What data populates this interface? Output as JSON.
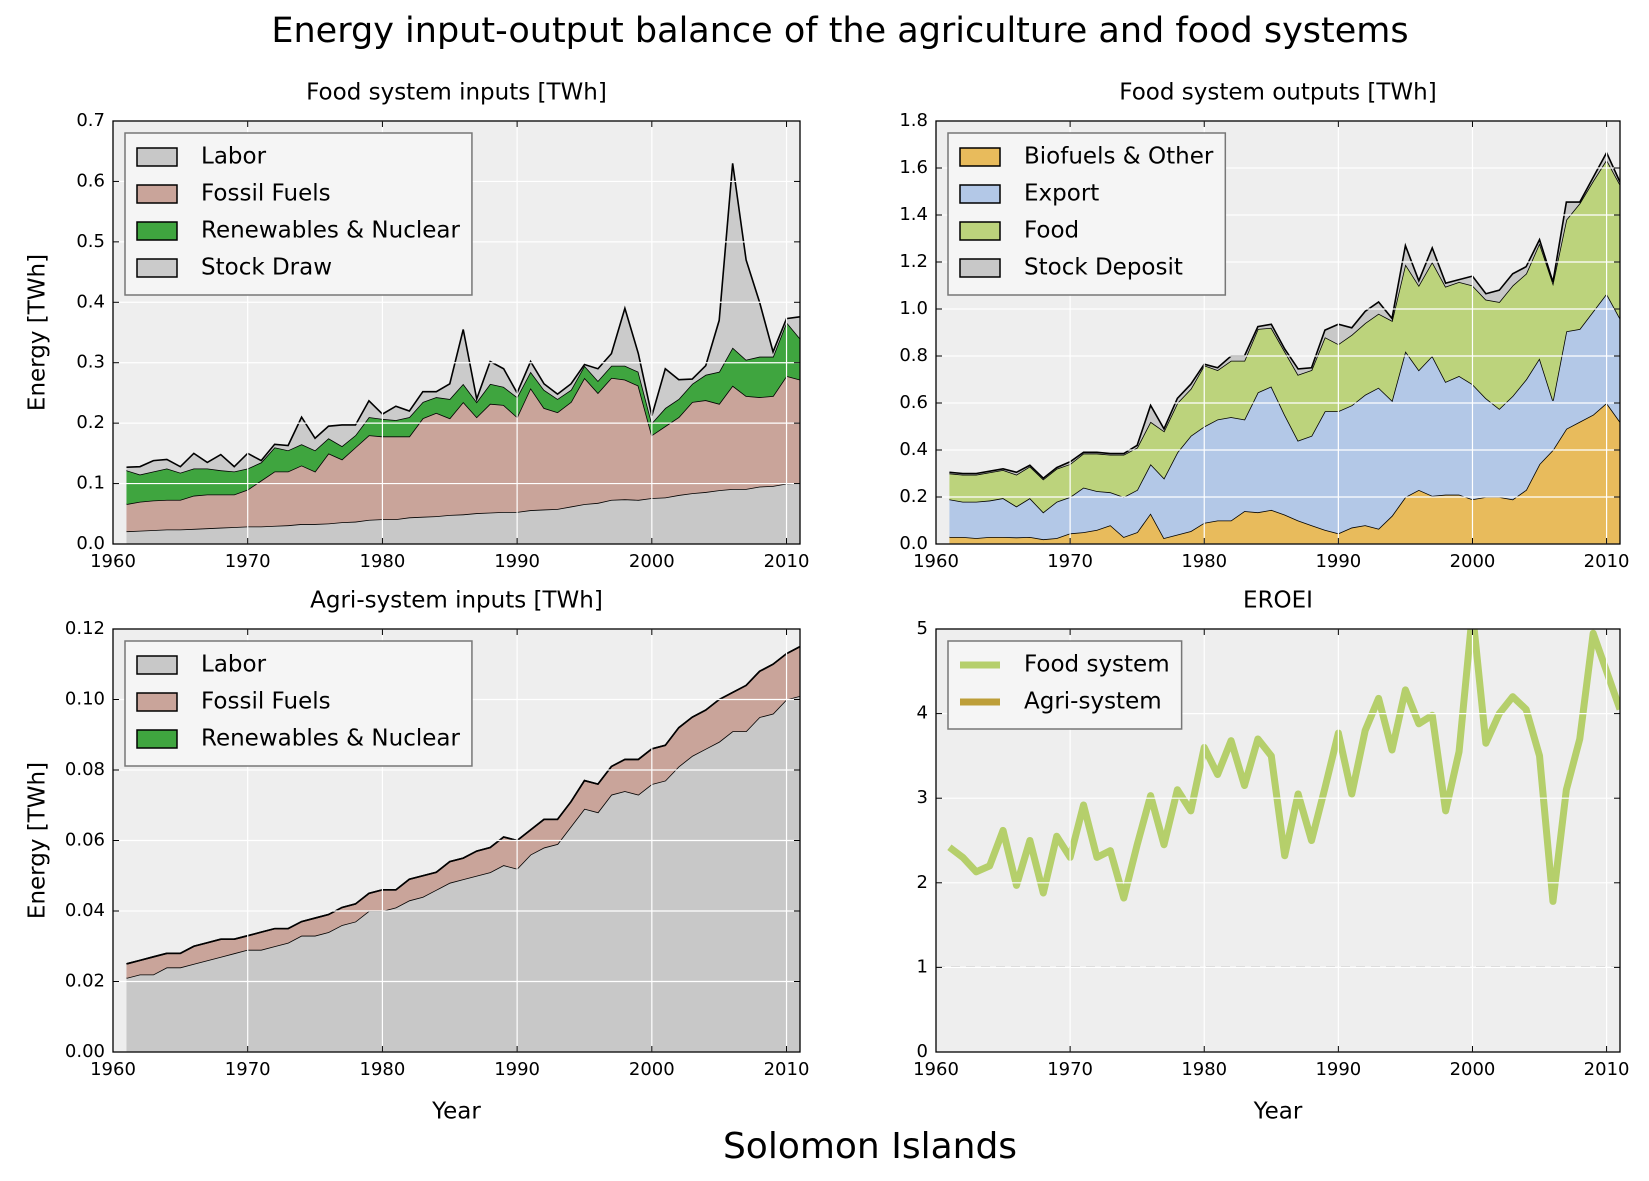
{
  "title": "Energy input-output balance of the agriculture and food systems",
  "subtitle": "Solomon Islands",
  "chart_data": [
    {
      "type": "area",
      "title": "Food system inputs [TWh]",
      "ylabel": "Energy [TWh]",
      "x": [
        1961,
        1962,
        1963,
        1964,
        1965,
        1966,
        1967,
        1968,
        1969,
        1970,
        1971,
        1972,
        1973,
        1974,
        1975,
        1976,
        1977,
        1978,
        1979,
        1980,
        1981,
        1982,
        1983,
        1984,
        1985,
        1986,
        1987,
        1988,
        1989,
        1990,
        1991,
        1992,
        1993,
        1994,
        1995,
        1996,
        1997,
        1998,
        1999,
        2000,
        2001,
        2002,
        2003,
        2004,
        2005,
        2006,
        2007,
        2008,
        2009,
        2010,
        2011
      ],
      "xlim": [
        1960,
        2011
      ],
      "xticks": [
        1960,
        1970,
        1980,
        1990,
        2000,
        2010
      ],
      "ylim": [
        0,
        0.7
      ],
      "yticks": [
        {
          "value": 0,
          "label": "0.0"
        },
        0.1,
        0.2,
        0.3,
        0.4,
        0.5,
        0.6,
        0.7
      ],
      "grid": true,
      "legend": "upper left",
      "series": [
        {
          "name": "Labor",
          "color": "#c8c8c8",
          "values": [
            0.021,
            0.022,
            0.023,
            0.024,
            0.024,
            0.025,
            0.026,
            0.027,
            0.028,
            0.029,
            0.029,
            0.03,
            0.031,
            0.033,
            0.033,
            0.034,
            0.036,
            0.037,
            0.04,
            0.041,
            0.041,
            0.044,
            0.045,
            0.046,
            0.048,
            0.049,
            0.051,
            0.052,
            0.053,
            0.053,
            0.056,
            0.057,
            0.058,
            0.062,
            0.066,
            0.068,
            0.073,
            0.074,
            0.073,
            0.076,
            0.077,
            0.081,
            0.084,
            0.086,
            0.089,
            0.091,
            0.091,
            0.095,
            0.096,
            0.1,
            0.101
          ]
        },
        {
          "name": "Fossil Fuels",
          "color": "#c9a49a",
          "values": [
            0.045,
            0.048,
            0.049,
            0.049,
            0.049,
            0.055,
            0.056,
            0.055,
            0.054,
            0.061,
            0.076,
            0.09,
            0.089,
            0.097,
            0.087,
            0.116,
            0.104,
            0.123,
            0.14,
            0.137,
            0.137,
            0.134,
            0.163,
            0.171,
            0.16,
            0.186,
            0.159,
            0.18,
            0.177,
            0.157,
            0.202,
            0.168,
            0.16,
            0.173,
            0.209,
            0.182,
            0.202,
            0.198,
            0.189,
            0.104,
            0.118,
            0.129,
            0.151,
            0.152,
            0.143,
            0.171,
            0.154,
            0.148,
            0.149,
            0.178,
            0.171
          ]
        },
        {
          "name": "Renewables & Nuclear",
          "color": "#3fa53f",
          "values": [
            0.056,
            0.045,
            0.048,
            0.052,
            0.045,
            0.045,
            0.043,
            0.04,
            0.038,
            0.035,
            0.03,
            0.04,
            0.035,
            0.035,
            0.035,
            0.025,
            0.022,
            0.02,
            0.03,
            0.029,
            0.027,
            0.032,
            0.027,
            0.026,
            0.032,
            0.03,
            0.025,
            0.033,
            0.03,
            0.033,
            0.027,
            0.03,
            0.022,
            0.02,
            0.02,
            0.02,
            0.02,
            0.023,
            0.023,
            0.02,
            0.03,
            0.03,
            0.03,
            0.042,
            0.053,
            0.063,
            0.06,
            0.067,
            0.065,
            0.089,
            0.068
          ]
        },
        {
          "name": "Stock Draw",
          "color": "#cbcbcb",
          "values": [
            0.005,
            0.013,
            0.018,
            0.015,
            0.01,
            0.025,
            0.01,
            0.026,
            0.008,
            0.025,
            0.003,
            0.005,
            0.008,
            0.045,
            0.02,
            0.02,
            0.035,
            0.017,
            0.027,
            0.008,
            0.023,
            0.01,
            0.017,
            0.009,
            0.025,
            0.09,
            0.005,
            0.037,
            0.03,
            0.007,
            0.017,
            0.01,
            0.008,
            0.01,
            0.002,
            0.02,
            0.02,
            0.095,
            0.03,
            0.012,
            0.065,
            0.032,
            0.008,
            0.015,
            0.085,
            0.305,
            0.165,
            0.09,
            0.008,
            0.006,
            0.036
          ]
        }
      ]
    },
    {
      "type": "area",
      "title": "Food system outputs [TWh]",
      "x": [
        1961,
        1962,
        1963,
        1964,
        1965,
        1966,
        1967,
        1968,
        1969,
        1970,
        1971,
        1972,
        1973,
        1974,
        1975,
        1976,
        1977,
        1978,
        1979,
        1980,
        1981,
        1982,
        1983,
        1984,
        1985,
        1986,
        1987,
        1988,
        1989,
        1990,
        1991,
        1992,
        1993,
        1994,
        1995,
        1996,
        1997,
        1998,
        1999,
        2000,
        2001,
        2002,
        2003,
        2004,
        2005,
        2006,
        2007,
        2008,
        2009,
        2010,
        2011
      ],
      "xlim": [
        1960,
        2011
      ],
      "xticks": [
        1960,
        1970,
        1980,
        1990,
        2000,
        2010
      ],
      "ylim": [
        0,
        1.8
      ],
      "yticks": [
        {
          "value": 0,
          "label": "0.0"
        },
        0.2,
        0.4,
        0.6,
        0.8,
        {
          "value": 1,
          "label": "1.0"
        },
        1.2,
        1.4,
        1.6,
        1.8
      ],
      "grid": true,
      "legend": "upper left",
      "series": [
        {
          "name": "Biofuels & Other",
          "color": "#e8bb5c",
          "values": [
            0.03,
            0.03,
            0.025,
            0.03,
            0.03,
            0.028,
            0.03,
            0.02,
            0.025,
            0.045,
            0.05,
            0.06,
            0.08,
            0.03,
            0.05,
            0.13,
            0.025,
            0.04,
            0.055,
            0.09,
            0.1,
            0.1,
            0.14,
            0.135,
            0.145,
            0.125,
            0.1,
            0.08,
            0.06,
            0.045,
            0.07,
            0.08,
            0.065,
            0.12,
            0.2,
            0.23,
            0.205,
            0.21,
            0.21,
            0.19,
            0.2,
            0.2,
            0.19,
            0.23,
            0.34,
            0.4,
            0.49,
            0.52,
            0.55,
            0.6,
            0.52
          ]
        },
        {
          "name": "Export",
          "color": "#b3c8e7",
          "values": [
            0.16,
            0.15,
            0.155,
            0.155,
            0.165,
            0.132,
            0.165,
            0.115,
            0.155,
            0.155,
            0.19,
            0.165,
            0.14,
            0.17,
            0.18,
            0.21,
            0.255,
            0.35,
            0.405,
            0.41,
            0.43,
            0.44,
            0.39,
            0.51,
            0.525,
            0.425,
            0.34,
            0.38,
            0.505,
            0.52,
            0.52,
            0.555,
            0.6,
            0.49,
            0.62,
            0.51,
            0.595,
            0.48,
            0.505,
            0.49,
            0.42,
            0.375,
            0.44,
            0.47,
            0.45,
            0.21,
            0.415,
            0.395,
            0.44,
            0.465,
            0.44
          ]
        },
        {
          "name": "Food",
          "color": "#bcd37c",
          "values": [
            0.11,
            0.115,
            0.115,
            0.12,
            0.12,
            0.135,
            0.135,
            0.14,
            0.14,
            0.14,
            0.145,
            0.16,
            0.16,
            0.18,
            0.18,
            0.18,
            0.2,
            0.21,
            0.2,
            0.26,
            0.21,
            0.24,
            0.25,
            0.27,
            0.25,
            0.27,
            0.28,
            0.28,
            0.315,
            0.285,
            0.3,
            0.305,
            0.315,
            0.34,
            0.37,
            0.36,
            0.4,
            0.405,
            0.4,
            0.42,
            0.42,
            0.455,
            0.47,
            0.45,
            0.49,
            0.5,
            0.475,
            0.535,
            0.555,
            0.57,
            0.57
          ]
        },
        {
          "name": "Stock Deposit",
          "color": "#c8c8c8",
          "values": [
            0.005,
            0.005,
            0.005,
            0.005,
            0.005,
            0.01,
            0.005,
            0.005,
            0.005,
            0.01,
            0.005,
            0.005,
            0.005,
            0.005,
            0.01,
            0.07,
            0.01,
            0.02,
            0.02,
            0.005,
            0.01,
            0.02,
            0.02,
            0.01,
            0.015,
            0.01,
            0.025,
            0.01,
            0.03,
            0.085,
            0.03,
            0.05,
            0.05,
            0.01,
            0.08,
            0.02,
            0.06,
            0.015,
            0.01,
            0.04,
            0.025,
            0.05,
            0.05,
            0.03,
            0.015,
            0.005,
            0.075,
            0.005,
            0.015,
            0.03,
            0.01
          ]
        }
      ]
    },
    {
      "type": "area",
      "title": "Agri-system inputs [TWh]",
      "ylabel": "Energy [TWh]",
      "xlabel": "Year",
      "x": [
        1961,
        1962,
        1963,
        1964,
        1965,
        1966,
        1967,
        1968,
        1969,
        1970,
        1971,
        1972,
        1973,
        1974,
        1975,
        1976,
        1977,
        1978,
        1979,
        1980,
        1981,
        1982,
        1983,
        1984,
        1985,
        1986,
        1987,
        1988,
        1989,
        1990,
        1991,
        1992,
        1993,
        1994,
        1995,
        1996,
        1997,
        1998,
        1999,
        2000,
        2001,
        2002,
        2003,
        2004,
        2005,
        2006,
        2007,
        2008,
        2009,
        2010,
        2011
      ],
      "xlim": [
        1960,
        2011
      ],
      "xticks": [
        1960,
        1970,
        1980,
        1990,
        2000,
        2010
      ],
      "ylim": [
        0,
        0.12
      ],
      "yticks": [
        {
          "value": 0,
          "label": "0.00"
        },
        0.02,
        0.04,
        0.06,
        0.08,
        {
          "value": 0.1,
          "label": "0.10"
        },
        0.12
      ],
      "grid": true,
      "legend": "upper left",
      "series": [
        {
          "name": "Labor",
          "color": "#c8c8c8",
          "values": [
            0.021,
            0.022,
            0.022,
            0.024,
            0.024,
            0.025,
            0.026,
            0.027,
            0.028,
            0.029,
            0.029,
            0.03,
            0.031,
            0.033,
            0.033,
            0.034,
            0.036,
            0.037,
            0.04,
            0.04,
            0.041,
            0.043,
            0.044,
            0.046,
            0.048,
            0.049,
            0.05,
            0.051,
            0.053,
            0.052,
            0.056,
            0.058,
            0.059,
            0.064,
            0.069,
            0.068,
            0.073,
            0.074,
            0.073,
            0.076,
            0.077,
            0.081,
            0.084,
            0.086,
            0.088,
            0.091,
            0.091,
            0.095,
            0.096,
            0.1,
            0.101
          ]
        },
        {
          "name": "Fossil Fuels",
          "color": "#c9a49a",
          "values": [
            0.004,
            0.004,
            0.005,
            0.004,
            0.004,
            0.005,
            0.005,
            0.005,
            0.004,
            0.004,
            0.005,
            0.005,
            0.004,
            0.004,
            0.005,
            0.005,
            0.005,
            0.005,
            0.005,
            0.006,
            0.005,
            0.006,
            0.006,
            0.005,
            0.006,
            0.006,
            0.007,
            0.007,
            0.008,
            0.008,
            0.007,
            0.008,
            0.007,
            0.007,
            0.008,
            0.008,
            0.008,
            0.009,
            0.01,
            0.01,
            0.01,
            0.011,
            0.011,
            0.011,
            0.012,
            0.011,
            0.013,
            0.013,
            0.014,
            0.013,
            0.014
          ]
        },
        {
          "name": "Renewables & Nuclear",
          "color": "#3fa53f",
          "values": [
            0,
            0,
            0,
            0,
            0,
            0,
            0,
            0,
            0,
            0,
            0,
            0,
            0,
            0,
            0,
            0,
            0,
            0,
            0,
            0,
            0,
            0,
            0,
            0,
            0,
            0,
            0,
            0,
            0,
            0,
            0,
            0,
            0,
            0,
            0,
            0,
            0,
            0,
            0,
            0,
            0,
            0,
            0,
            0,
            0,
            0,
            0,
            0,
            0,
            0,
            0
          ]
        }
      ]
    },
    {
      "type": "line",
      "title": "EROEI",
      "xlabel": "Year",
      "x": [
        1961,
        1962,
        1963,
        1964,
        1965,
        1966,
        1967,
        1968,
        1969,
        1970,
        1971,
        1972,
        1973,
        1974,
        1975,
        1976,
        1977,
        1978,
        1979,
        1980,
        1981,
        1982,
        1983,
        1984,
        1985,
        1986,
        1987,
        1988,
        1989,
        1990,
        1991,
        1992,
        1993,
        1994,
        1995,
        1996,
        1997,
        1998,
        1999,
        2000,
        2001,
        2002,
        2003,
        2004,
        2005,
        2006,
        2007,
        2008,
        2009,
        2010,
        2011
      ],
      "xlim": [
        1960,
        2011
      ],
      "xticks": [
        1960,
        1970,
        1980,
        1990,
        2000,
        2010
      ],
      "ylim": [
        0,
        5
      ],
      "yticks": [
        0,
        1,
        2,
        3,
        4,
        5
      ],
      "grid": true,
      "legend": "upper left",
      "hline": 1,
      "series": [
        {
          "name": "Food system",
          "color": "#b5cf6b",
          "values": [
            2.42,
            2.3,
            2.13,
            2.2,
            2.62,
            1.97,
            2.5,
            1.88,
            2.55,
            2.3,
            2.92,
            2.3,
            2.38,
            1.82,
            2.45,
            3.03,
            2.45,
            3.1,
            2.85,
            3.6,
            3.28,
            3.68,
            3.15,
            3.7,
            3.5,
            2.32,
            3.05,
            2.5,
            3.12,
            3.77,
            3.05,
            3.8,
            4.18,
            3.57,
            4.28,
            3.88,
            3.98,
            2.85,
            3.55,
            5.2,
            3.65,
            4.0,
            4.2,
            4.05,
            3.5,
            1.78,
            3.1,
            3.7,
            4.95,
            4.5,
            4.05
          ]
        },
        {
          "name": "Agri-system",
          "color": "#bd9e39",
          "values": [
            null,
            null,
            null,
            null,
            null,
            null,
            null,
            null,
            null,
            null,
            null,
            null,
            null,
            null,
            null,
            null,
            null,
            null,
            null,
            null,
            null,
            null,
            null,
            null,
            null,
            null,
            null,
            null,
            null,
            null,
            null,
            null,
            null,
            null,
            null,
            null,
            null,
            null,
            null,
            null,
            null,
            null,
            null,
            null,
            null,
            null,
            null,
            null,
            null,
            null,
            null
          ]
        }
      ]
    }
  ]
}
